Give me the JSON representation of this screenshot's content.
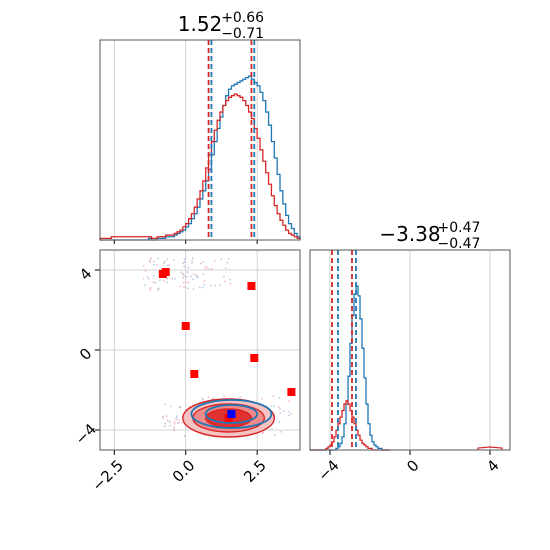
{
  "colors": {
    "blue": "#1f77b4",
    "red": "#d62728",
    "red_fill": "#f08080",
    "grid": "#c8c8c8",
    "marker_red": "#ff0000",
    "marker_blue": "#0000ff"
  },
  "chart_data": [
    {
      "type": "histogram",
      "panel": "top-left",
      "title": {
        "value": "1.52",
        "upper": "+0.66",
        "lower": "−0.71"
      },
      "xlim": [
        -3.0,
        4.0
      ],
      "grid": true,
      "quantile_lines": {
        "blue": [
          0.9,
          2.4
        ],
        "red": [
          0.8,
          2.3
        ]
      },
      "series": [
        {
          "color": "blue",
          "x_start": -3.0,
          "bin_width": 0.1,
          "values": [
            0,
            0,
            0,
            0,
            0,
            0,
            0,
            0,
            0,
            0,
            0,
            0,
            0,
            0,
            0,
            0,
            0,
            1,
            0,
            0,
            1,
            1,
            1,
            2,
            2,
            2,
            3,
            4,
            5,
            6,
            8,
            10,
            13,
            16,
            20,
            25,
            30,
            36,
            43,
            52,
            60,
            68,
            75,
            82,
            88,
            92,
            94,
            95,
            96,
            97,
            98,
            99,
            100,
            98,
            96,
            94,
            90,
            85,
            78,
            70,
            60,
            50,
            40,
            30,
            22,
            15,
            10,
            7,
            4,
            2
          ]
        },
        {
          "color": "red",
          "x_start": -3.0,
          "bin_width": 0.1,
          "values": [
            1,
            1,
            1,
            1,
            2,
            2,
            2,
            2,
            2,
            2,
            2,
            2,
            2,
            2,
            2,
            2,
            2,
            2,
            1,
            1,
            2,
            2,
            2,
            3,
            3,
            3,
            4,
            5,
            6,
            8,
            10,
            13,
            16,
            20,
            25,
            30,
            36,
            44,
            52,
            60,
            67,
            73,
            78,
            82,
            85,
            87,
            88,
            89,
            88,
            87,
            85,
            82,
            78,
            74,
            68,
            62,
            55,
            48,
            41,
            34,
            27,
            21,
            16,
            12,
            9,
            6,
            4,
            3,
            2,
            1
          ]
        }
      ]
    },
    {
      "type": "scatter_contour",
      "panel": "bottom-left",
      "xlim": [
        -3.0,
        4.0
      ],
      "ylim": [
        -5.0,
        5.0
      ],
      "xticks": [
        "−2.5",
        "0.0",
        "2.5"
      ],
      "xtick_values": [
        -2.5,
        0.0,
        2.5
      ],
      "yticks": [
        "−4",
        "0",
        "4"
      ],
      "ytick_values": [
        -4,
        0,
        4
      ],
      "grid": true,
      "red_markers": [
        [
          -0.8,
          3.8
        ],
        [
          -0.7,
          3.9
        ],
        [
          0.0,
          1.2
        ],
        [
          0.3,
          -1.2
        ],
        [
          2.3,
          3.2
        ],
        [
          2.4,
          -0.4
        ],
        [
          3.7,
          -2.1
        ],
        [
          1.5,
          -3.4
        ]
      ],
      "blue_markers": [
        [
          1.6,
          -3.2
        ]
      ],
      "red_contours": [
        {
          "cx": 1.5,
          "cy": -3.4,
          "rx": 1.6,
          "ry": 0.95
        },
        {
          "cx": 1.5,
          "cy": -3.4,
          "rx": 1.25,
          "ry": 0.7
        },
        {
          "cx": 1.5,
          "cy": -3.4,
          "rx": 0.8,
          "ry": 0.45
        }
      ],
      "blue_contours": [
        {
          "cx": 1.6,
          "cy": -3.2,
          "rx": 1.4,
          "ry": 0.7
        },
        {
          "cx": 1.6,
          "cy": -3.2,
          "rx": 0.9,
          "ry": 0.45
        }
      ]
    },
    {
      "type": "histogram",
      "panel": "bottom-right",
      "title": {
        "value": "−3.38",
        "upper": "+0.47",
        "lower": "−0.47"
      },
      "xlim": [
        -5.0,
        5.0
      ],
      "xticks": [
        "−4",
        "0",
        "4"
      ],
      "xtick_values": [
        -4,
        0,
        4
      ],
      "grid": true,
      "quantile_lines": {
        "blue": [
          -3.6,
          -2.7
        ],
        "red": [
          -3.9,
          -2.9
        ]
      },
      "series": [
        {
          "color": "blue",
          "x_start": -5.0,
          "bin_width": 0.1,
          "values": [
            0,
            0,
            0,
            0,
            0,
            0,
            0,
            0,
            0,
            0,
            0,
            0,
            0,
            1,
            2,
            4,
            8,
            16,
            28,
            45,
            65,
            82,
            95,
            100,
            94,
            80,
            62,
            44,
            28,
            16,
            9,
            5,
            3,
            2,
            1,
            1,
            0,
            0,
            0,
            0
          ]
        },
        {
          "color": "red",
          "x_start": -5.0,
          "bin_width": 0.1,
          "values": [
            0,
            0,
            0,
            0,
            0,
            0,
            0,
            0,
            1,
            2,
            3,
            5,
            8,
            12,
            16,
            20,
            24,
            28,
            30,
            28,
            24,
            20,
            16,
            12,
            9,
            6,
            4,
            3,
            2,
            1,
            1,
            0,
            0,
            0,
            0,
            0,
            0,
            0,
            0,
            0
          ]
        }
      ]
    }
  ]
}
